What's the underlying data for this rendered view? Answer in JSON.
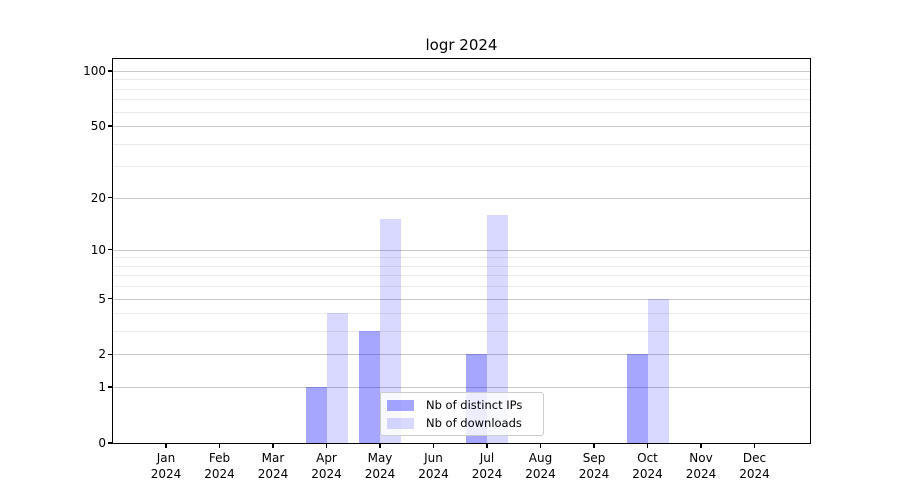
{
  "title": "logr 2024",
  "legend": {
    "position": "lower center",
    "items": [
      {
        "label": "Nb of distinct IPs",
        "color": "rgba(0,0,255,0.35)"
      },
      {
        "label": "Nb of downloads",
        "color": "rgba(0,0,255,0.15)"
      }
    ]
  },
  "chart_data": {
    "type": "bar",
    "title": "logr 2024",
    "categories": [
      "Jan",
      "Feb",
      "Mar",
      "Apr",
      "May",
      "Jun",
      "Jul",
      "Aug",
      "Sep",
      "Oct",
      "Nov",
      "Dec"
    ],
    "x_sublabel_year": "2024",
    "series": [
      {
        "name": "Nb of distinct IPs",
        "color": "rgba(0,0,255,0.35)",
        "values": [
          0,
          0,
          0,
          1,
          3,
          0,
          2,
          0,
          0,
          2,
          0,
          0
        ]
      },
      {
        "name": "Nb of downloads",
        "color": "rgba(0,0,255,0.15)",
        "values": [
          0,
          0,
          0,
          4,
          15,
          0,
          16,
          0,
          0,
          5,
          0,
          0
        ]
      }
    ],
    "xlabel": "",
    "ylabel": "",
    "y_scale": "log1p",
    "y_ticks": [
      0,
      1,
      2,
      5,
      10,
      20,
      50,
      100
    ],
    "y_tick_labels": [
      "0",
      "1",
      "2",
      "5",
      "10",
      "20",
      "50",
      "100"
    ],
    "y_minor_ticks": [
      3,
      4,
      6,
      7,
      8,
      9,
      30,
      40,
      60,
      70,
      80,
      90
    ],
    "ylim": [
      0,
      116
    ],
    "grid": true,
    "legend_position": "lower center"
  },
  "colors": {
    "background": "#ffffff",
    "spine": "#000000",
    "grid_major": "#c9c9c9",
    "grid_minor": "#ebebeb",
    "bar_distinct_ips": "rgba(0,0,255,0.35)",
    "bar_downloads": "rgba(0,0,255,0.15)"
  }
}
